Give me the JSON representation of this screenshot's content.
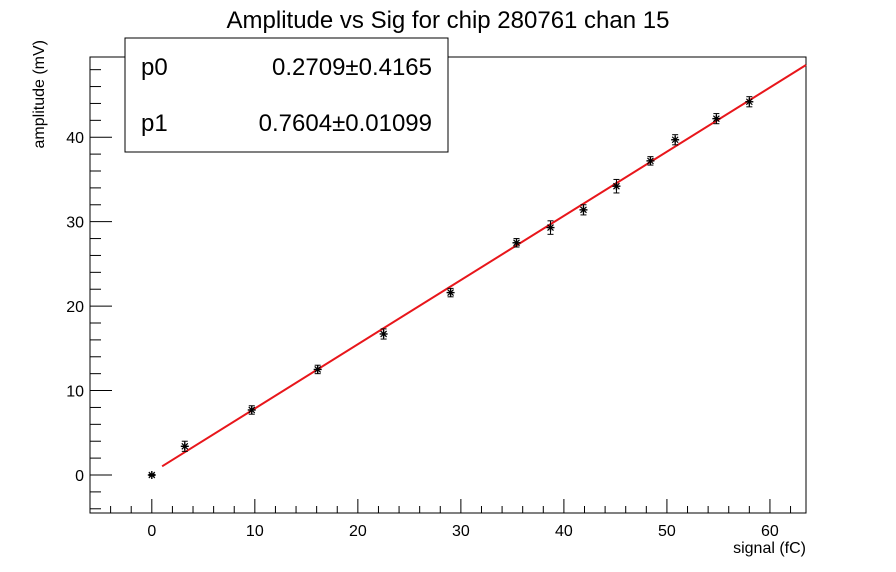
{
  "chart_data": {
    "type": "scatter",
    "title": "Amplitude vs Sig for chip 280761 chan 15",
    "xlabel": "signal (fC)",
    "ylabel": "amplitude (mV)",
    "xlim": [
      -6,
      63.5
    ],
    "ylim": [
      -4.5,
      49.5
    ],
    "x_ticks": [
      0,
      10,
      20,
      30,
      40,
      50,
      60
    ],
    "x_tick_labels": [
      "0",
      "10",
      "20",
      "30",
      "40",
      "50",
      "60"
    ],
    "y_ticks": [
      0,
      10,
      20,
      30,
      40
    ],
    "y_tick_labels": [
      "0",
      "10",
      "20",
      "30",
      "40"
    ],
    "grid": false,
    "series": [
      {
        "kind": "points-with-errors",
        "color": "#000000",
        "x": [
          0.0,
          3.2,
          9.7,
          16.1,
          22.5,
          29.0,
          35.4,
          38.7,
          41.9,
          45.1,
          48.4,
          50.8,
          54.8,
          58.0
        ],
        "y": [
          0.0,
          3.4,
          7.7,
          12.5,
          16.7,
          21.6,
          27.5,
          29.3,
          31.4,
          34.2,
          37.2,
          39.7,
          42.2,
          44.2
        ],
        "err": [
          0.1,
          0.6,
          0.5,
          0.5,
          0.6,
          0.5,
          0.5,
          0.8,
          0.6,
          0.8,
          0.5,
          0.6,
          0.6,
          0.6
        ]
      },
      {
        "kind": "fit-line",
        "color": "#e8161b",
        "x_range": [
          1.0,
          63.5
        ],
        "p0": 0.2709,
        "p1": 0.7604
      }
    ],
    "stats_box": {
      "location": "top-left",
      "rows": [
        {
          "name": "p0",
          "value": "0.2709",
          "pm": "±",
          "error": "0.4165"
        },
        {
          "name": "p1",
          "value": "0.7604",
          "pm": "±",
          "error": "0.01099"
        }
      ]
    }
  }
}
